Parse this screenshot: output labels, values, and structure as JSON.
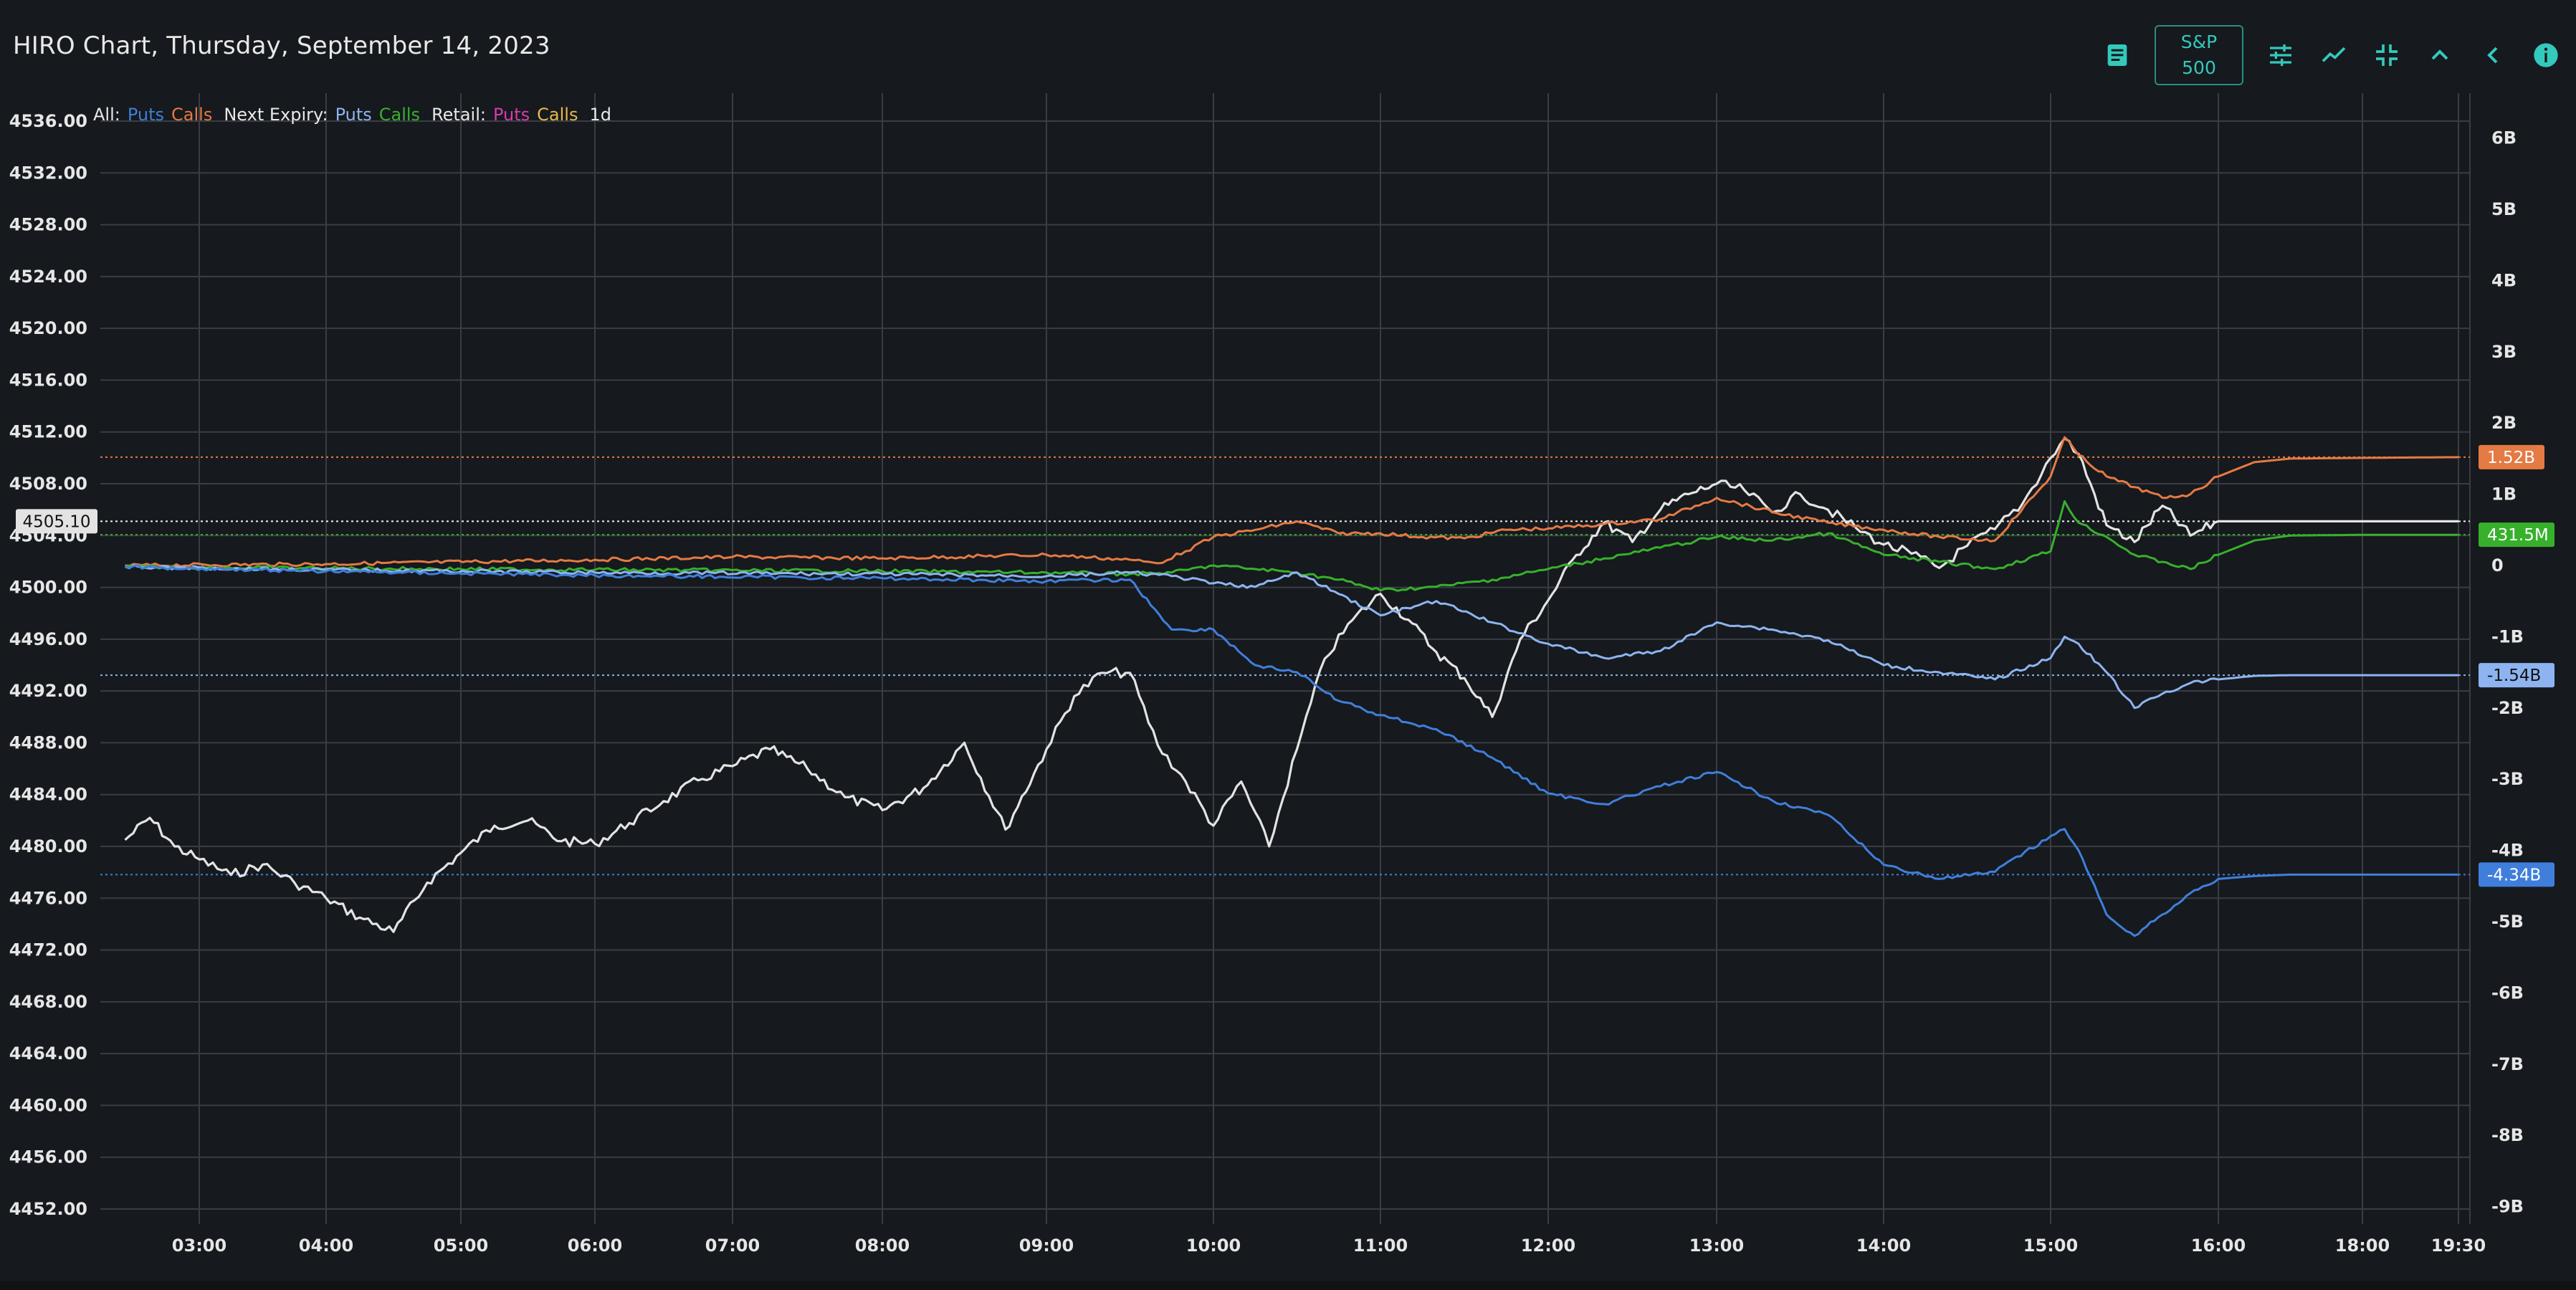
{
  "header": {
    "title": "HIRO Chart, Thursday, September 14, 2023",
    "symbol_button": {
      "line1": "S&P",
      "line2": "500"
    },
    "icons": [
      "notes-icon",
      "sliders-icon",
      "trend-line-icon",
      "collapse-icon",
      "chevron-up-icon",
      "chevron-left-icon",
      "info-icon"
    ]
  },
  "legend": {
    "all_label": "All:",
    "all_puts": "Puts",
    "all_calls": "Calls",
    "next_expiry_label": "Next Expiry:",
    "next_puts": "Puts",
    "next_calls": "Calls",
    "retail_label": "Retail:",
    "retail_puts": "Puts",
    "retail_calls": "Calls",
    "range": "1d"
  },
  "colors": {
    "background": "#16191d",
    "grid": "#3a3e44",
    "price": "#e3e3e3",
    "all_puts": "#3f7fdb",
    "all_calls": "#e47a44",
    "next_puts": "#8db4f0",
    "next_calls": "#37b02c",
    "retail_puts": "#d63bb0",
    "retail_calls": "#e6b94b",
    "accent": "#33c9bd"
  },
  "chart_data": {
    "type": "line",
    "x_ticks": [
      "03:00",
      "04:00",
      "05:00",
      "06:00",
      "07:00",
      "08:00",
      "09:00",
      "10:00",
      "11:00",
      "12:00",
      "13:00",
      "14:00",
      "15:00",
      "16:00",
      "18:00",
      "19:30"
    ],
    "left_axis": {
      "ticks": [
        "4536.00",
        "4532.00",
        "4528.00",
        "4524.00",
        "4520.00",
        "4516.00",
        "4512.00",
        "4508.00",
        "4504.00",
        "4500.00",
        "4496.00",
        "4492.00",
        "4488.00",
        "4484.00",
        "4480.00",
        "4476.00",
        "4472.00",
        "4468.00",
        "4464.00",
        "4460.00",
        "4456.00",
        "4452.00"
      ],
      "range": [
        4451,
        4537
      ]
    },
    "right_axis": {
      "ticks": [
        "6B",
        "5B",
        "4B",
        "3B",
        "2B",
        "1B",
        "0",
        "-1B",
        "-2B",
        "-3B",
        "-4B",
        "-5B",
        "-6B",
        "-7B",
        "-8B",
        "-9B"
      ],
      "range": [
        -9,
        6
      ]
    },
    "last_values": {
      "price": "4505.10",
      "all_calls": "1.52B",
      "next_calls": "431.5M",
      "next_puts": "-1.54B",
      "all_puts": "-4.34B"
    },
    "series": [
      {
        "name": "Price",
        "axis": "left",
        "x": [
          "02:15",
          "02:30",
          "02:45",
          "03:00",
          "03:15",
          "03:30",
          "03:45",
          "04:00",
          "04:15",
          "04:30",
          "04:45",
          "05:00",
          "05:15",
          "05:30",
          "05:45",
          "06:00",
          "06:15",
          "06:30",
          "06:45",
          "07:00",
          "07:15",
          "07:30",
          "07:45",
          "08:00",
          "08:15",
          "08:30",
          "08:45",
          "09:00",
          "09:10",
          "09:20",
          "09:30",
          "09:40",
          "09:50",
          "10:00",
          "10:10",
          "10:20",
          "10:30",
          "10:40",
          "10:50",
          "11:00",
          "11:10",
          "11:20",
          "11:30",
          "11:40",
          "11:50",
          "12:00",
          "12:10",
          "12:20",
          "12:30",
          "12:40",
          "12:50",
          "13:00",
          "13:10",
          "13:20",
          "13:30",
          "13:40",
          "13:50",
          "14:00",
          "14:10",
          "14:20",
          "14:30",
          "14:40",
          "14:50",
          "15:00",
          "15:05",
          "15:10",
          "15:20",
          "15:30",
          "15:40",
          "15:50",
          "16:00",
          "17:00",
          "18:00",
          "19:30"
        ],
        "values": [
          4480.5,
          4482.2,
          4480.0,
          4479.0,
          4477.8,
          4478.6,
          4477.2,
          4476.0,
          4474.5,
          4473.4,
          4477.2,
          4479.5,
          4481.6,
          4482.0,
          4480.4,
          4480.2,
          4481.8,
          4483.5,
          4485.1,
          4486.2,
          4487.5,
          4486.0,
          4483.8,
          4482.8,
          4484.5,
          4488.0,
          4481.3,
          4487.5,
          4491.6,
          4493.4,
          4493.4,
          4487.8,
          4485.0,
          4481.6,
          4485.0,
          4480.0,
          4487.5,
          4494.5,
          4497.5,
          4499.5,
          4497.5,
          4495.0,
          4493.0,
          4490.0,
          4496.0,
          4499.0,
          4502.5,
          4505.0,
          4503.5,
          4506.0,
          4507.2,
          4508.0,
          4507.5,
          4505.8,
          4507.2,
          4506.0,
          4504.6,
          4503.3,
          4502.6,
          4501.5,
          4503.2,
          4504.5,
          4506.5,
          4510.0,
          4511.5,
          4510.3,
          4504.8,
          4503.5,
          4506.3,
          4504.0,
          4505.1,
          4505.1,
          4505.1,
          4505.1
        ]
      },
      {
        "name": "All Calls",
        "axis": "right",
        "x": [
          "02:15",
          "04:00",
          "06:00",
          "07:00",
          "08:00",
          "09:00",
          "09:30",
          "09:40",
          "09:50",
          "10:00",
          "10:15",
          "10:30",
          "10:45",
          "11:00",
          "11:15",
          "11:30",
          "11:45",
          "12:00",
          "12:20",
          "12:40",
          "13:00",
          "13:20",
          "13:40",
          "14:00",
          "14:20",
          "14:40",
          "15:00",
          "15:05",
          "15:10",
          "15:20",
          "15:30",
          "15:40",
          "15:50",
          "16:00",
          "16:30",
          "17:00",
          "18:00",
          "19:30"
        ],
        "values": [
          0.0,
          0.02,
          0.08,
          0.12,
          0.1,
          0.15,
          0.08,
          0.03,
          0.2,
          0.4,
          0.5,
          0.62,
          0.45,
          0.45,
          0.4,
          0.38,
          0.5,
          0.52,
          0.58,
          0.65,
          0.95,
          0.75,
          0.6,
          0.5,
          0.4,
          0.35,
          1.25,
          1.8,
          1.55,
          1.25,
          1.1,
          0.95,
          1.0,
          1.25,
          1.45,
          1.5,
          1.51,
          1.52
        ]
      },
      {
        "name": "Next Expiry Calls",
        "axis": "right",
        "x": [
          "02:15",
          "04:00",
          "06:00",
          "08:00",
          "09:00",
          "09:30",
          "09:45",
          "10:00",
          "10:15",
          "10:30",
          "10:45",
          "11:00",
          "11:20",
          "11:40",
          "12:00",
          "12:20",
          "12:40",
          "13:00",
          "13:20",
          "13:40",
          "14:00",
          "14:20",
          "14:40",
          "15:00",
          "15:05",
          "15:10",
          "15:20",
          "15:30",
          "15:40",
          "15:50",
          "16:00",
          "16:30",
          "17:00",
          "18:00",
          "19:30"
        ],
        "values": [
          -0.02,
          -0.04,
          -0.06,
          -0.08,
          -0.1,
          -0.12,
          -0.1,
          0.0,
          -0.05,
          -0.1,
          -0.2,
          -0.35,
          -0.3,
          -0.2,
          -0.05,
          0.1,
          0.25,
          0.4,
          0.35,
          0.45,
          0.15,
          0.05,
          -0.05,
          0.2,
          0.9,
          0.6,
          0.4,
          0.15,
          0.05,
          -0.05,
          0.15,
          0.35,
          0.42,
          0.43,
          0.43
        ]
      },
      {
        "name": "Next Expiry Puts",
        "axis": "right",
        "x": [
          "02:15",
          "04:00",
          "06:00",
          "08:00",
          "09:00",
          "09:30",
          "09:45",
          "10:00",
          "10:15",
          "10:30",
          "10:45",
          "11:00",
          "11:20",
          "11:40",
          "12:00",
          "12:20",
          "12:40",
          "13:00",
          "13:20",
          "13:40",
          "14:00",
          "14:20",
          "14:40",
          "15:00",
          "15:05",
          "15:10",
          "15:20",
          "15:30",
          "15:40",
          "15:50",
          "16:00",
          "16:30",
          "17:00",
          "18:00",
          "19:30"
        ],
        "values": [
          -0.02,
          -0.06,
          -0.1,
          -0.12,
          -0.15,
          -0.1,
          -0.15,
          -0.25,
          -0.3,
          -0.1,
          -0.4,
          -0.7,
          -0.5,
          -0.8,
          -1.1,
          -1.3,
          -1.2,
          -0.8,
          -0.9,
          -1.05,
          -1.4,
          -1.5,
          -1.6,
          -1.3,
          -1.0,
          -1.1,
          -1.5,
          -2.0,
          -1.8,
          -1.65,
          -1.6,
          -1.55,
          -1.54,
          -1.54,
          -1.54
        ]
      },
      {
        "name": "All Puts",
        "axis": "right",
        "x": [
          "02:15",
          "04:00",
          "06:00",
          "08:00",
          "09:00",
          "09:30",
          "09:45",
          "10:00",
          "10:15",
          "10:30",
          "10:45",
          "11:00",
          "11:20",
          "11:40",
          "12:00",
          "12:20",
          "12:40",
          "13:00",
          "13:20",
          "13:40",
          "14:00",
          "14:20",
          "14:40",
          "15:00",
          "15:05",
          "15:10",
          "15:20",
          "15:30",
          "15:40",
          "15:50",
          "16:00",
          "16:30",
          "17:00",
          "18:00",
          "19:30"
        ],
        "values": [
          -0.02,
          -0.08,
          -0.14,
          -0.18,
          -0.22,
          -0.2,
          -0.9,
          -0.9,
          -1.4,
          -1.5,
          -1.9,
          -2.1,
          -2.3,
          -2.7,
          -3.2,
          -3.35,
          -3.1,
          -2.9,
          -3.3,
          -3.5,
          -4.2,
          -4.4,
          -4.3,
          -3.8,
          -3.7,
          -4.0,
          -4.9,
          -5.2,
          -4.9,
          -4.6,
          -4.4,
          -4.36,
          -4.34,
          -4.34,
          -4.34
        ]
      }
    ]
  }
}
